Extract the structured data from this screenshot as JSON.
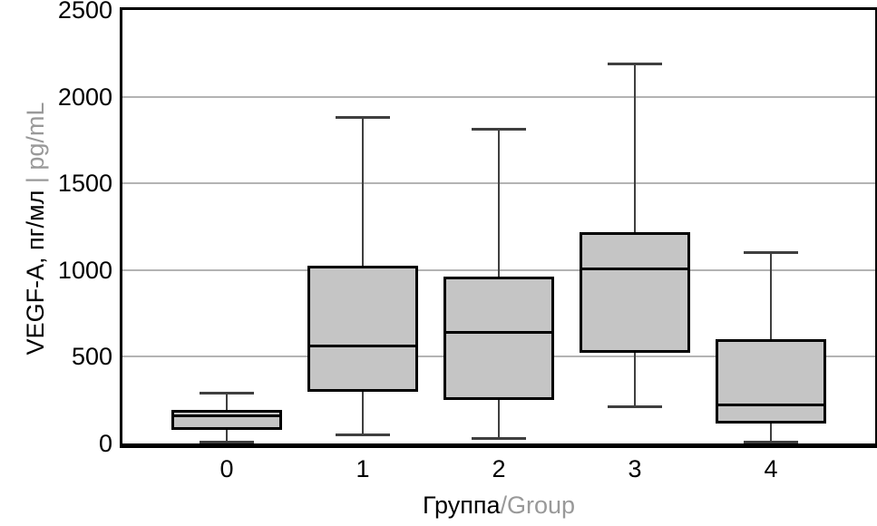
{
  "chart_data": {
    "type": "boxplot",
    "title": "",
    "ylabel": {
      "primary": "VEGF-A, пг/мл",
      "separator": " | ",
      "secondary": "pg/mL"
    },
    "xlabel": {
      "primary": "Группа",
      "secondary": "/Group"
    },
    "ylim": [
      0,
      2500
    ],
    "y_ticks": [
      0,
      500,
      1000,
      1500,
      2000,
      2500
    ],
    "grid_values": [
      500,
      1000,
      1500,
      2000
    ],
    "grid_on": true,
    "categories": [
      "0",
      "1",
      "2",
      "3",
      "4"
    ],
    "series": [
      {
        "group": "0",
        "whisker_low": 10,
        "q1": 80,
        "median": 160,
        "q3": 195,
        "whisker_high": 290
      },
      {
        "group": "1",
        "whisker_low": 50,
        "q1": 300,
        "median": 560,
        "q3": 1025,
        "whisker_high": 1880
      },
      {
        "group": "2",
        "whisker_low": 30,
        "q1": 250,
        "median": 640,
        "q3": 960,
        "whisker_high": 1810
      },
      {
        "group": "3",
        "whisker_low": 210,
        "q1": 525,
        "median": 1005,
        "q3": 1220,
        "whisker_high": 2190
      },
      {
        "group": "4",
        "whisker_low": 10,
        "q1": 115,
        "median": 220,
        "q3": 600,
        "whisker_high": 1100
      }
    ],
    "colors": {
      "box_fill": "#c5c5c5",
      "box_border": "#000000",
      "median": "#000000",
      "whisker": "#3f3f3f",
      "gridline": "#b3b3b3",
      "primary_text": "#000000",
      "secondary_text": "#999999",
      "background": "#ffffff"
    }
  }
}
